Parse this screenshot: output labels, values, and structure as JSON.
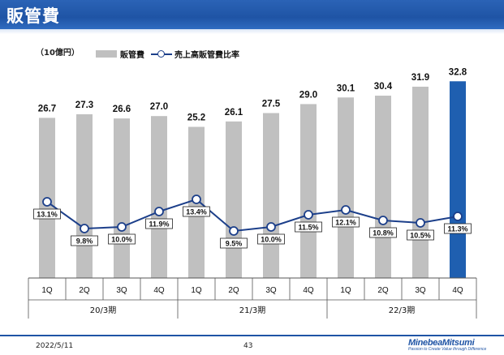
{
  "header": {
    "title": "販管費"
  },
  "unit_label": "（10億円）",
  "footer": {
    "date": "2022/5/11",
    "page": "43",
    "logo": "MinebeaMitsumi",
    "tagline": "Passion to Create Value through Difference"
  },
  "colors": {
    "bar": "#c0c0c0",
    "highlight_bar": "#1f5fb0",
    "line": "#1c3f8a",
    "header": "#1f54a5"
  },
  "chart_data": {
    "type": "bar",
    "categories": [
      "1Q",
      "2Q",
      "3Q",
      "4Q",
      "1Q",
      "2Q",
      "3Q",
      "4Q",
      "1Q",
      "2Q",
      "3Q",
      "4Q"
    ],
    "groups": [
      {
        "label": "20/3期",
        "span": 4
      },
      {
        "label": "21/3期",
        "span": 4
      },
      {
        "label": "22/3期",
        "span": 4
      }
    ],
    "series": [
      {
        "name": "販管費",
        "type": "bar",
        "values": [
          26.7,
          27.3,
          26.6,
          27.0,
          25.2,
          26.1,
          27.5,
          29.0,
          30.1,
          30.4,
          31.9,
          32.8
        ],
        "labels": [
          "26.7",
          "27.3",
          "26.6",
          "27.0",
          "25.2",
          "26.1",
          "27.5",
          "29.0",
          "30.1",
          "30.4",
          "31.9",
          "32.8"
        ]
      },
      {
        "name": "売上高販管費比率",
        "type": "line",
        "values": [
          13.1,
          9.8,
          10.0,
          11.9,
          13.4,
          9.5,
          10.0,
          11.5,
          12.1,
          10.8,
          10.5,
          11.3
        ],
        "labels": [
          "13.1%",
          "9.8%",
          "10.0%",
          "11.9%",
          "13.4%",
          "9.5%",
          "10.0%",
          "11.5%",
          "12.1%",
          "10.8%",
          "10.5%",
          "11.3%"
        ]
      }
    ],
    "highlight_index": 11,
    "bar_ylim": [
      0,
      35
    ],
    "line_ylim": [
      0,
      30
    ],
    "legend": "top-left",
    "grid": false
  }
}
